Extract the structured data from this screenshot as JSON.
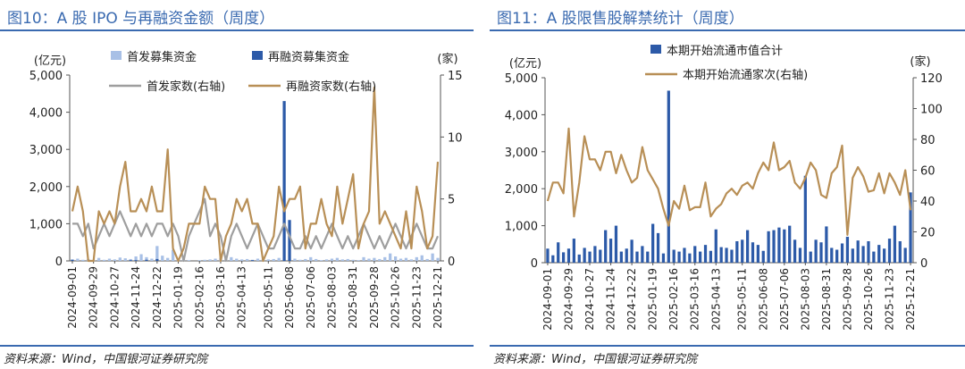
{
  "chart_data": [
    {
      "type": "bar+line",
      "title": "图10：A 股 IPO 与再融资金额（周度）",
      "source": "资料来源：Wind，中国银河证券研究院",
      "left_unit": "(亿元)",
      "right_unit": "(家)",
      "ylim_left": [
        0,
        5000
      ],
      "ylim_right": [
        0,
        15
      ],
      "yticks_left": [
        "0",
        "1,000",
        "2,000",
        "3,000",
        "4,000",
        "5,000"
      ],
      "yticks_right": [
        "0",
        "5",
        "10",
        "15"
      ],
      "x_tick_labels": [
        "2024-09-01",
        "2024-09-29",
        "2024-10-27",
        "2024-11-24",
        "2024-12-22",
        "2025-01-19",
        "2025-02-16",
        "2025-03-16",
        "2025-04-13",
        "2025-05-11",
        "2025-06-08",
        "2025-07-06",
        "2025-08-03",
        "2025-08-31",
        "2025-09-28",
        "2025-10-26",
        "2025-11-23",
        "2025-12-21"
      ],
      "series": [
        {
          "name": "首发募集资金",
          "kind": "bar",
          "axis": "left",
          "color": "#a8c0e6",
          "values": [
            40,
            60,
            30,
            50,
            20,
            80,
            30,
            60,
            40,
            90,
            70,
            50,
            120,
            180,
            100,
            60,
            400,
            140,
            80,
            300,
            60,
            40,
            20,
            0,
            20,
            30,
            40,
            60,
            80,
            50,
            100,
            60,
            40,
            50,
            30,
            60,
            40,
            40,
            50,
            80,
            20,
            40,
            60,
            30,
            50,
            100,
            50,
            20,
            40,
            60,
            80,
            40,
            50,
            30,
            20,
            100,
            60,
            80,
            50,
            100,
            200,
            120,
            60,
            80,
            40,
            100,
            150,
            50,
            200,
            80
          ]
        },
        {
          "name": "再融资募集资金",
          "kind": "bar",
          "axis": "left",
          "color": "#2c5aa8",
          "values": [
            30,
            0,
            0,
            0,
            0,
            0,
            0,
            0,
            0,
            0,
            0,
            20,
            20,
            0,
            30,
            0,
            50,
            0,
            0,
            0,
            0,
            0,
            0,
            0,
            0,
            0,
            0,
            0,
            0,
            0,
            0,
            0,
            0,
            0,
            20,
            0,
            0,
            0,
            0,
            0,
            4300,
            1100,
            0,
            0,
            0,
            0,
            0,
            0,
            0,
            0,
            0,
            0,
            0,
            0,
            0,
            0,
            0,
            0,
            0,
            0,
            0,
            0,
            0,
            0,
            0,
            0,
            0,
            0,
            0,
            0
          ]
        },
        {
          "name": "首发家数(右轴)",
          "kind": "line",
          "axis": "right",
          "color": "#9e9e9e",
          "values": [
            3,
            3,
            2,
            3,
            1,
            2,
            3,
            2,
            3,
            4,
            3,
            2,
            3,
            2,
            3,
            2,
            3,
            3,
            2,
            3,
            2,
            0,
            2,
            3,
            4,
            5,
            2,
            3,
            2,
            0,
            2,
            3,
            2,
            1,
            2,
            3,
            2,
            1,
            1,
            2,
            3,
            2,
            1,
            1,
            2,
            1,
            2,
            1,
            2,
            3,
            2,
            1,
            2,
            1,
            2,
            3,
            2,
            1,
            2,
            1,
            2,
            3,
            2,
            1,
            2,
            3,
            2,
            1,
            1,
            2
          ]
        },
        {
          "name": "再融资家数(右轴)",
          "kind": "line",
          "axis": "right",
          "color": "#b88f56",
          "values": [
            4,
            6,
            4,
            0,
            0,
            4,
            3,
            4,
            3,
            6,
            8,
            4,
            4,
            5,
            4,
            6,
            4,
            4,
            9,
            1,
            0,
            1,
            3,
            3,
            3,
            6,
            5,
            5,
            0,
            2,
            3,
            5,
            4,
            5,
            3,
            3,
            0,
            1,
            2,
            6,
            4,
            5,
            5,
            6,
            1,
            3,
            3,
            5,
            3,
            2,
            6,
            3,
            5,
            7,
            1,
            3,
            4,
            14,
            3,
            4,
            3,
            2,
            1,
            4,
            1,
            6,
            4,
            1,
            2,
            8
          ]
        }
      ]
    },
    {
      "type": "bar+line",
      "title": "图11：A 股限售股解禁统计（周度）",
      "source": "资料来源：Wind，中国银河证券研究院",
      "left_unit": "(亿元)",
      "right_unit": "(家)",
      "ylim_left": [
        0,
        5000
      ],
      "ylim_right": [
        0,
        120
      ],
      "yticks_left": [
        "0",
        "1,000",
        "2,000",
        "3,000",
        "4,000",
        "5,000"
      ],
      "yticks_right": [
        "0",
        "20",
        "40",
        "60",
        "80",
        "100",
        "120"
      ],
      "x_tick_labels": [
        "2024-09-01",
        "2024-09-29",
        "2024-10-27",
        "2024-11-24",
        "2024-12-22",
        "2025-01-19",
        "2025-02-16",
        "2025-03-16",
        "2025-04-13",
        "2025-05-11",
        "2025-06-08",
        "2025-07-06",
        "2025-08-03",
        "2025-08-31",
        "2025-09-28",
        "2025-10-26",
        "2025-11-23",
        "2025-12-21"
      ],
      "series": [
        {
          "name": "本期开始流通市值合计",
          "kind": "bar",
          "axis": "left",
          "color": "#2c5aa8",
          "values": [
            380,
            200,
            550,
            280,
            380,
            650,
            220,
            400,
            300,
            450,
            350,
            880,
            650,
            1000,
            300,
            380,
            620,
            300,
            450,
            300,
            1050,
            800,
            250,
            4650,
            350,
            300,
            400,
            250,
            450,
            300,
            480,
            320,
            900,
            420,
            400,
            350,
            580,
            620,
            880,
            550,
            480,
            320,
            850,
            880,
            950,
            900,
            1000,
            620,
            400,
            2350,
            300,
            620,
            550,
            980,
            400,
            350,
            520,
            700,
            380,
            600,
            450,
            580,
            300,
            480,
            380,
            650,
            1000,
            580,
            400,
            1900
          ]
        },
        {
          "name": "本期开始流通家次(右轴)",
          "kind": "line",
          "axis": "right",
          "color": "#b88f56",
          "values": [
            40,
            52,
            52,
            45,
            87,
            30,
            52,
            82,
            67,
            67,
            60,
            72,
            72,
            58,
            70,
            60,
            52,
            55,
            75,
            60,
            54,
            48,
            35,
            24,
            40,
            35,
            50,
            34,
            36,
            36,
            52,
            30,
            35,
            38,
            45,
            48,
            44,
            50,
            52,
            48,
            58,
            65,
            60,
            78,
            60,
            62,
            66,
            52,
            48,
            55,
            65,
            60,
            44,
            42,
            58,
            62,
            76,
            18,
            55,
            62,
            56,
            46,
            47,
            58,
            45,
            58,
            52,
            44,
            60,
            34
          ]
        }
      ]
    }
  ]
}
